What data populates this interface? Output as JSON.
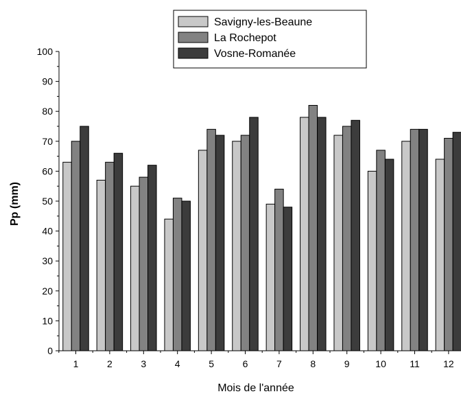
{
  "chart_data": {
    "type": "bar",
    "xlabel": "Mois de l'année",
    "ylabel": "Pp (mm)",
    "ylim": [
      0,
      100
    ],
    "yticks": [
      0,
      10,
      20,
      30,
      40,
      50,
      60,
      70,
      80,
      90,
      100
    ],
    "categories": [
      "1",
      "2",
      "3",
      "4",
      "5",
      "6",
      "7",
      "8",
      "9",
      "10",
      "11",
      "12"
    ],
    "series": [
      {
        "name": "Savigny-les-Beaune",
        "color": "#c8c8c8",
        "values": [
          63,
          57,
          55,
          44,
          67,
          70,
          49,
          78,
          72,
          60,
          70,
          64
        ]
      },
      {
        "name": "La Rochepot",
        "color": "#828282",
        "values": [
          70,
          63,
          58,
          51,
          74,
          72,
          54,
          82,
          75,
          67,
          74,
          71
        ]
      },
      {
        "name": "Vosne-Romanée",
        "color": "#3c3c3c",
        "values": [
          75,
          66,
          62,
          50,
          72,
          78,
          48,
          78,
          77,
          64,
          74,
          73
        ]
      }
    ],
    "legend_position": "top-center",
    "grid": false
  }
}
